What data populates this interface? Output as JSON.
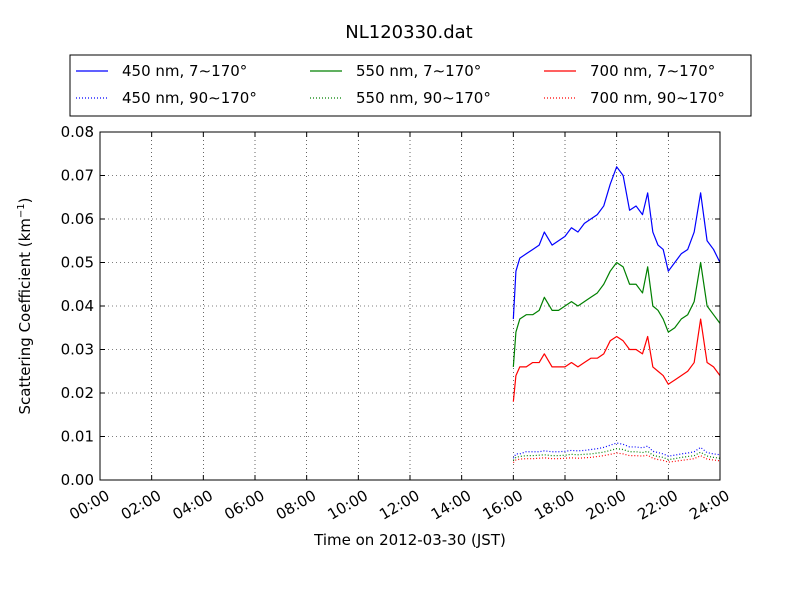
{
  "chart_data": {
    "type": "line",
    "title": "NL120330.dat",
    "xlabel": "Time on 2012-03-30 (JST)",
    "ylabel": "Scattering Coefficient (km",
    "ylabel_sup": "−1",
    "ylabel_close": ")",
    "xlim": [
      0,
      24
    ],
    "ylim": [
      0,
      0.08
    ],
    "grid": true,
    "legend_position": "top",
    "x_ticks": [
      0,
      2,
      4,
      6,
      8,
      10,
      12,
      14,
      16,
      18,
      20,
      22,
      24
    ],
    "x_tick_labels": [
      "00:00",
      "02:00",
      "04:00",
      "06:00",
      "08:00",
      "10:00",
      "12:00",
      "14:00",
      "16:00",
      "18:00",
      "20:00",
      "22:00",
      "24:00"
    ],
    "y_ticks": [
      0,
      0.01,
      0.02,
      0.03,
      0.04,
      0.05,
      0.06,
      0.07,
      0.08
    ],
    "y_tick_labels": [
      "0.00",
      "0.01",
      "0.02",
      "0.03",
      "0.04",
      "0.05",
      "0.06",
      "0.07",
      "0.08"
    ],
    "x_unit": "hours",
    "x": [
      16.0,
      16.1,
      16.25,
      16.5,
      16.75,
      17.0,
      17.2,
      17.5,
      17.75,
      18.0,
      18.25,
      18.5,
      18.75,
      19.0,
      19.25,
      19.5,
      19.75,
      20.0,
      20.25,
      20.5,
      20.75,
      21.0,
      21.2,
      21.4,
      21.6,
      21.8,
      22.0,
      22.25,
      22.5,
      22.75,
      23.0,
      23.25,
      23.5,
      23.75,
      24.0
    ],
    "series": [
      {
        "name": "450 nm, 7∼170°",
        "color": "#0000ff",
        "style": "solid",
        "values": [
          0.037,
          0.048,
          0.051,
          0.052,
          0.053,
          0.054,
          0.057,
          0.054,
          0.055,
          0.056,
          0.058,
          0.057,
          0.059,
          0.06,
          0.061,
          0.063,
          0.068,
          0.072,
          0.07,
          0.062,
          0.063,
          0.061,
          0.066,
          0.057,
          0.054,
          0.053,
          0.048,
          0.05,
          0.052,
          0.053,
          0.057,
          0.066,
          0.055,
          0.053,
          0.05
        ]
      },
      {
        "name": "550 nm, 7∼170°",
        "color": "#008000",
        "style": "solid",
        "values": [
          0.026,
          0.034,
          0.037,
          0.038,
          0.038,
          0.039,
          0.042,
          0.039,
          0.039,
          0.04,
          0.041,
          0.04,
          0.041,
          0.042,
          0.043,
          0.045,
          0.048,
          0.05,
          0.049,
          0.045,
          0.045,
          0.043,
          0.049,
          0.04,
          0.039,
          0.037,
          0.034,
          0.035,
          0.037,
          0.038,
          0.041,
          0.05,
          0.04,
          0.038,
          0.036
        ]
      },
      {
        "name": "700 nm, 7∼170°",
        "color": "#ff0000",
        "style": "solid",
        "values": [
          0.018,
          0.024,
          0.026,
          0.026,
          0.027,
          0.027,
          0.029,
          0.026,
          0.026,
          0.026,
          0.027,
          0.026,
          0.027,
          0.028,
          0.028,
          0.029,
          0.032,
          0.033,
          0.032,
          0.03,
          0.03,
          0.029,
          0.033,
          0.026,
          0.025,
          0.024,
          0.022,
          0.023,
          0.024,
          0.025,
          0.027,
          0.037,
          0.027,
          0.026,
          0.024
        ]
      },
      {
        "name": "450 nm, 90∼170°",
        "color": "#0000ff",
        "style": "dotted",
        "values": [
          0.005,
          0.006,
          0.006,
          0.0065,
          0.0065,
          0.0065,
          0.0067,
          0.0065,
          0.0065,
          0.0066,
          0.0068,
          0.0067,
          0.0068,
          0.007,
          0.0072,
          0.0075,
          0.008,
          0.0085,
          0.0082,
          0.0076,
          0.0076,
          0.0074,
          0.0078,
          0.0066,
          0.0063,
          0.006,
          0.0055,
          0.0057,
          0.006,
          0.0062,
          0.0065,
          0.0075,
          0.0063,
          0.006,
          0.0058
        ]
      },
      {
        "name": "550 nm, 90∼170°",
        "color": "#008000",
        "style": "dotted",
        "values": [
          0.0045,
          0.0052,
          0.0054,
          0.0056,
          0.0056,
          0.0057,
          0.0058,
          0.0056,
          0.0056,
          0.0057,
          0.0059,
          0.0058,
          0.0059,
          0.006,
          0.0062,
          0.0064,
          0.0068,
          0.0072,
          0.007,
          0.0065,
          0.0065,
          0.0063,
          0.0066,
          0.0057,
          0.0054,
          0.0052,
          0.0047,
          0.0049,
          0.0052,
          0.0054,
          0.0056,
          0.0064,
          0.0055,
          0.0052,
          0.005
        ]
      },
      {
        "name": "700 nm, 90∼170°",
        "color": "#ff0000",
        "style": "dotted",
        "values": [
          0.004,
          0.0046,
          0.0048,
          0.0049,
          0.0049,
          0.005,
          0.0051,
          0.0049,
          0.0049,
          0.005,
          0.0051,
          0.005,
          0.0051,
          0.0052,
          0.0054,
          0.0056,
          0.0059,
          0.0062,
          0.006,
          0.0056,
          0.0056,
          0.0055,
          0.0057,
          0.005,
          0.0047,
          0.0045,
          0.0041,
          0.0043,
          0.0045,
          0.0047,
          0.0049,
          0.0056,
          0.0048,
          0.0046,
          0.0044
        ]
      }
    ]
  }
}
